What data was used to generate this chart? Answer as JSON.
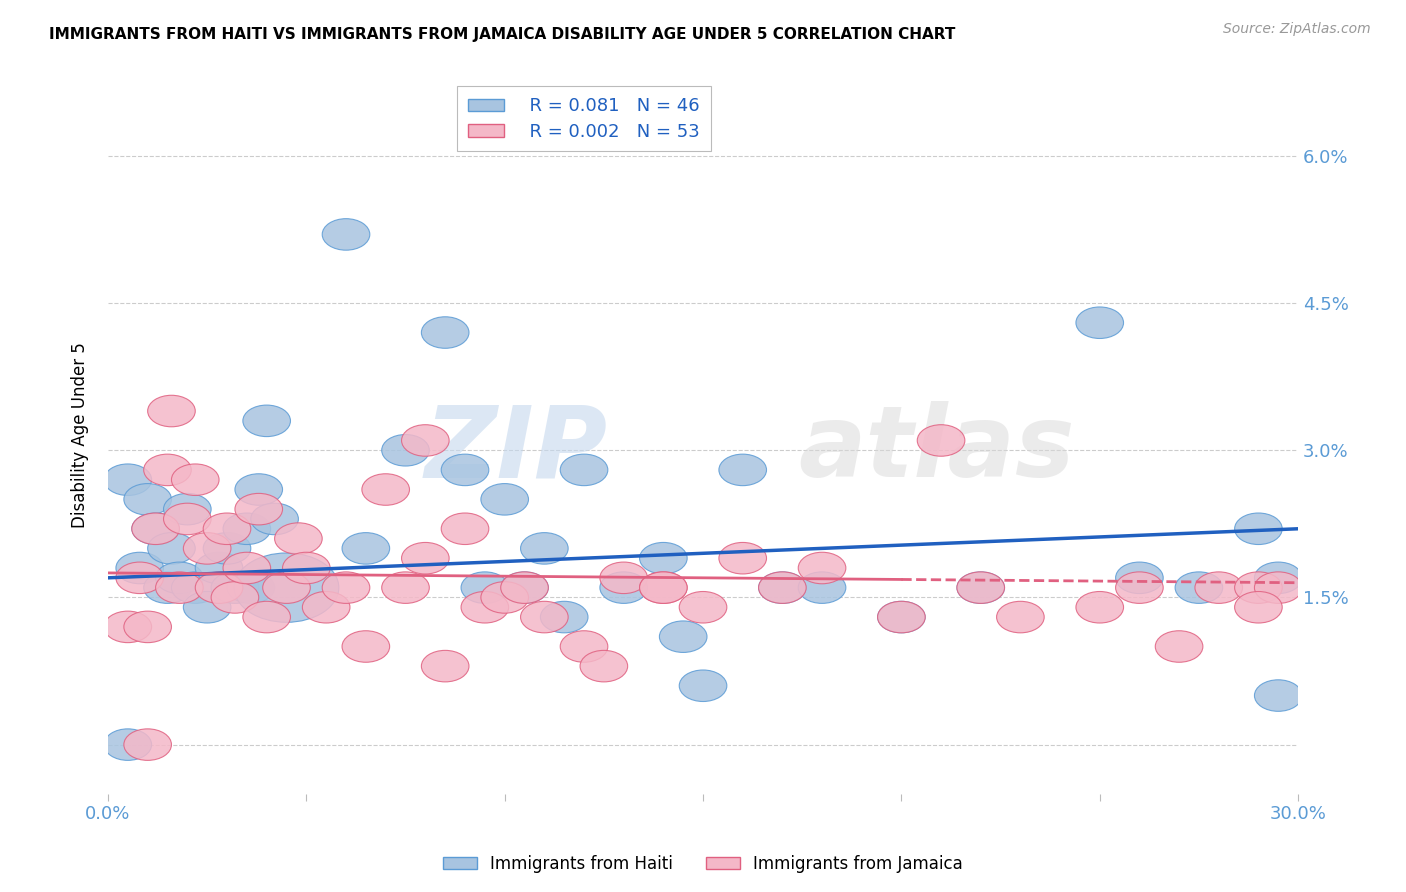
{
  "title": "IMMIGRANTS FROM HAITI VS IMMIGRANTS FROM JAMAICA DISABILITY AGE UNDER 5 CORRELATION CHART",
  "source": "Source: ZipAtlas.com",
  "ylabel": "Disability Age Under 5",
  "xlim": [
    0.0,
    0.3
  ],
  "ylim": [
    -0.005,
    0.068
  ],
  "haiti_color": "#a8c4e0",
  "haiti_edge_color": "#5b9bd5",
  "jamaica_color": "#f4b8c8",
  "jamaica_edge_color": "#e06080",
  "trend_haiti_color": "#2060c0",
  "trend_jamaica_color": "#e06080",
  "legend_r_haiti": "R = 0.081",
  "legend_n_haiti": "N = 46",
  "legend_r_jamaica": "R = 0.002",
  "legend_n_jamaica": "N = 53",
  "watermark_zip": "ZIP",
  "watermark_atlas": "atlas",
  "haiti_trend_start": 0.017,
  "haiti_trend_end": 0.022,
  "jamaica_trend_start": 0.0175,
  "jamaica_trend_end": 0.0165,
  "haiti_x": [
    0.005,
    0.008,
    0.01,
    0.012,
    0.015,
    0.016,
    0.018,
    0.02,
    0.022,
    0.025,
    0.028,
    0.03,
    0.032,
    0.035,
    0.036,
    0.038,
    0.04,
    0.042,
    0.045,
    0.06,
    0.065,
    0.075,
    0.085,
    0.09,
    0.095,
    0.1,
    0.105,
    0.11,
    0.115,
    0.12,
    0.13,
    0.14,
    0.145,
    0.15,
    0.16,
    0.17,
    0.2,
    0.22,
    0.25,
    0.26,
    0.275,
    0.29,
    0.295,
    0.005,
    0.295,
    0.18
  ],
  "haiti_y": [
    0.027,
    0.018,
    0.025,
    0.022,
    0.016,
    0.02,
    0.017,
    0.024,
    0.016,
    0.014,
    0.018,
    0.02,
    0.016,
    0.022,
    0.016,
    0.026,
    0.033,
    0.023,
    0.016,
    0.052,
    0.02,
    0.03,
    0.042,
    0.028,
    0.016,
    0.025,
    0.016,
    0.02,
    0.013,
    0.028,
    0.016,
    0.019,
    0.011,
    0.006,
    0.028,
    0.016,
    0.013,
    0.016,
    0.043,
    0.017,
    0.016,
    0.022,
    0.005,
    0.0,
    0.017,
    0.016
  ],
  "haiti_size": [
    200,
    180,
    200,
    180,
    180,
    200,
    180,
    200,
    180,
    180,
    200,
    200,
    180,
    200,
    180,
    200,
    200,
    200,
    600,
    200,
    200,
    200,
    200,
    200,
    200,
    200,
    200,
    200,
    200,
    200,
    200,
    200,
    200,
    200,
    200,
    200,
    200,
    200,
    200,
    200,
    200,
    200,
    200,
    180,
    200,
    200
  ],
  "jamaica_x": [
    0.005,
    0.008,
    0.01,
    0.012,
    0.015,
    0.016,
    0.018,
    0.02,
    0.022,
    0.025,
    0.028,
    0.03,
    0.032,
    0.035,
    0.038,
    0.04,
    0.045,
    0.048,
    0.05,
    0.055,
    0.06,
    0.065,
    0.07,
    0.075,
    0.08,
    0.085,
    0.09,
    0.095,
    0.1,
    0.105,
    0.11,
    0.12,
    0.125,
    0.13,
    0.14,
    0.14,
    0.15,
    0.16,
    0.17,
    0.18,
    0.2,
    0.21,
    0.22,
    0.23,
    0.25,
    0.26,
    0.27,
    0.28,
    0.29,
    0.295,
    0.01,
    0.08,
    0.29
  ],
  "jamaica_y": [
    0.012,
    0.017,
    0.012,
    0.022,
    0.028,
    0.034,
    0.016,
    0.023,
    0.027,
    0.02,
    0.016,
    0.022,
    0.015,
    0.018,
    0.024,
    0.013,
    0.016,
    0.021,
    0.018,
    0.014,
    0.016,
    0.01,
    0.026,
    0.016,
    0.019,
    0.008,
    0.022,
    0.014,
    0.015,
    0.016,
    0.013,
    0.01,
    0.008,
    0.017,
    0.016,
    0.016,
    0.014,
    0.019,
    0.016,
    0.018,
    0.013,
    0.031,
    0.016,
    0.013,
    0.014,
    0.016,
    0.01,
    0.016,
    0.016,
    0.016,
    0.0,
    0.031,
    0.014
  ],
  "jamaica_size": [
    200,
    180,
    180,
    200,
    200,
    200,
    200,
    200,
    200,
    200,
    180,
    200,
    200,
    200,
    200,
    200,
    180,
    200,
    200,
    200,
    200,
    200,
    200,
    200,
    200,
    200,
    200,
    200,
    200,
    200,
    200,
    200,
    200,
    200,
    200,
    200,
    200,
    200,
    200,
    200,
    200,
    200,
    200,
    200,
    200,
    200,
    200,
    200,
    200,
    200,
    180,
    200,
    200
  ]
}
